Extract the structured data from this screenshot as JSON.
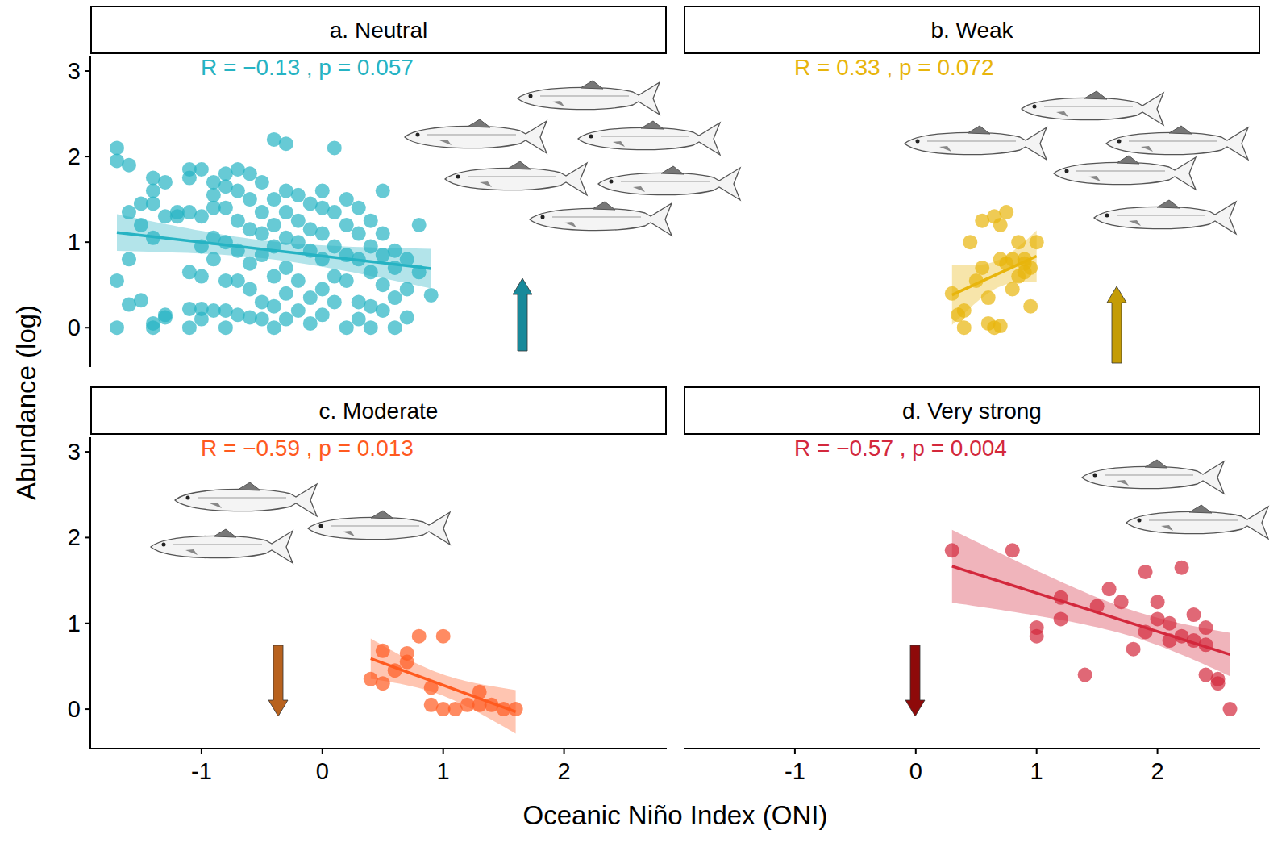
{
  "chart_data": [
    {
      "type": "scatter",
      "title": "a. Neutral",
      "annotation": "R = −0.13 , p = 0.057",
      "ylabel": "Abundance (log)",
      "xlabel": "Oceanic Niño Index (ONI)",
      "color": "#26b3c3",
      "tick_labels": "y",
      "xlim": [
        -1.92,
        2.85
      ],
      "ylim": [
        -0.46,
        3.17
      ],
      "xticks": [
        -1,
        0,
        1,
        2
      ],
      "yticks": [
        0,
        1,
        2,
        3
      ],
      "x": [
        -1.7,
        -1.7,
        -1.7,
        -1.7,
        -1.6,
        -1.6,
        -1.6,
        -1.6,
        -1.5,
        -1.5,
        -1.5,
        -1.4,
        -1.4,
        -1.4,
        -1.4,
        -1.4,
        -1.4,
        -1.3,
        -1.3,
        -1.3,
        -1.3,
        -1.2,
        -1.2,
        -1.1,
        -1.1,
        -1.1,
        -1.1,
        -1.1,
        -1.1,
        -1.0,
        -1.0,
        -1.0,
        -1.0,
        -1.0,
        -1.0,
        -0.9,
        -0.9,
        -0.9,
        -0.9,
        -0.9,
        -0.9,
        -0.8,
        -0.8,
        -0.8,
        -0.8,
        -0.8,
        -0.8,
        -0.8,
        -0.7,
        -0.7,
        -0.7,
        -0.7,
        -0.7,
        -0.7,
        -0.6,
        -0.6,
        -0.6,
        -0.6,
        -0.6,
        -0.6,
        -0.5,
        -0.5,
        -0.5,
        -0.5,
        -0.5,
        -0.5,
        -0.4,
        -0.4,
        -0.4,
        -0.4,
        -0.4,
        -0.4,
        -0.4,
        -0.3,
        -0.3,
        -0.3,
        -0.3,
        -0.3,
        -0.3,
        -0.3,
        -0.2,
        -0.2,
        -0.2,
        -0.2,
        -0.2,
        -0.1,
        -0.1,
        -0.1,
        -0.1,
        -0.1,
        0.0,
        0.0,
        0.0,
        0.0,
        0.0,
        0.0,
        0.1,
        0.1,
        0.1,
        0.1,
        0.1,
        0.2,
        0.2,
        0.2,
        0.2,
        0.2,
        0.3,
        0.3,
        0.3,
        0.3,
        0.3,
        0.4,
        0.4,
        0.4,
        0.4,
        0.4,
        0.5,
        0.5,
        0.5,
        0.5,
        0.5,
        0.6,
        0.6,
        0.6,
        0.6,
        0.7,
        0.7,
        0.7,
        0.8,
        0.8,
        0.9
      ],
      "values": [
        2.1,
        1.95,
        0.55,
        0.0,
        1.9,
        1.35,
        0.8,
        0.27,
        1.45,
        1.2,
        0.32,
        1.75,
        1.6,
        1.45,
        1.05,
        0.05,
        0.0,
        1.7,
        1.3,
        0.15,
        0.12,
        1.35,
        1.3,
        1.85,
        1.75,
        1.35,
        0.65,
        0.22,
        0.0,
        1.85,
        1.3,
        0.95,
        0.6,
        0.22,
        0.1,
        1.7,
        1.55,
        1.4,
        1.05,
        0.8,
        0.2,
        1.8,
        1.65,
        1.4,
        1.0,
        0.55,
        0.2,
        0.0,
        1.85,
        1.6,
        1.25,
        0.9,
        0.55,
        0.15,
        1.8,
        1.5,
        1.15,
        0.75,
        0.45,
        0.12,
        1.7,
        1.35,
        1.1,
        0.85,
        0.3,
        0.1,
        2.2,
        1.5,
        1.2,
        0.95,
        0.6,
        0.25,
        0.0,
        2.15,
        1.6,
        1.35,
        1.05,
        0.7,
        0.4,
        0.1,
        1.55,
        1.25,
        1.0,
        0.55,
        0.2,
        1.45,
        1.15,
        0.9,
        0.35,
        0.05,
        1.6,
        1.4,
        1.1,
        0.8,
        0.45,
        0.15,
        2.1,
        1.35,
        0.95,
        0.6,
        0.3,
        1.5,
        1.2,
        0.85,
        0.55,
        0.0,
        1.4,
        1.1,
        0.8,
        0.3,
        0.1,
        1.25,
        0.95,
        0.65,
        0.25,
        0.0,
        1.6,
        1.1,
        0.85,
        0.5,
        0.2,
        0.9,
        0.7,
        0.35,
        0.0,
        0.8,
        0.45,
        0.12,
        1.2,
        0.65,
        0.38
      ]
    },
    {
      "type": "scatter",
      "title": "b. Weak",
      "annotation": "R = 0.33 , p = 0.072",
      "color": "#e8b50c",
      "tick_labels": false,
      "xlim": [
        -1.92,
        2.85
      ],
      "ylim": [
        -0.46,
        3.17
      ],
      "xticks": [
        -1,
        0,
        1,
        2
      ],
      "yticks": [
        0,
        1,
        2,
        3
      ],
      "x": [
        0.3,
        0.35,
        0.4,
        0.4,
        0.45,
        0.5,
        0.55,
        0.55,
        0.6,
        0.6,
        0.65,
        0.65,
        0.7,
        0.7,
        0.7,
        0.75,
        0.75,
        0.8,
        0.8,
        0.85,
        0.85,
        0.9,
        0.9,
        0.95,
        0.95,
        1.0,
        0.9
      ],
      "values": [
        0.4,
        0.15,
        0.0,
        0.2,
        1.0,
        0.55,
        0.7,
        1.25,
        0.05,
        0.35,
        1.3,
        0.0,
        0.8,
        1.2,
        0.02,
        1.35,
        0.75,
        0.8,
        0.45,
        0.6,
        1.0,
        0.8,
        0.65,
        0.25,
        0.7,
        1.0,
        0.75
      ]
    },
    {
      "type": "scatter",
      "title": "c. Moderate",
      "annotation": "R = −0.59 , p = 0.013",
      "color": "#ff5a1f",
      "xlim": [
        -1.92,
        2.85
      ],
      "ylim": [
        -0.46,
        3.17
      ],
      "xticks": [
        -1,
        0,
        1,
        2
      ],
      "yticks": [
        0,
        1,
        2,
        3
      ],
      "x": [
        0.4,
        0.5,
        0.5,
        0.6,
        0.7,
        0.7,
        0.8,
        0.9,
        0.9,
        1.0,
        1.0,
        1.1,
        1.2,
        1.3,
        1.3,
        1.4,
        1.5,
        1.6
      ],
      "values": [
        0.35,
        0.3,
        0.68,
        0.45,
        0.65,
        0.55,
        0.85,
        0.05,
        0.25,
        0.85,
        0.0,
        0.0,
        0.05,
        0.2,
        0.05,
        0.05,
        0.0,
        0.0
      ]
    },
    {
      "type": "scatter",
      "title": "d. Very strong",
      "annotation": "R = −0.57 , p = 0.004",
      "color": "#d3283c",
      "tick_labels": "x",
      "xlim": [
        -1.92,
        2.85
      ],
      "ylim": [
        -0.46,
        3.17
      ],
      "xticks": [
        -1,
        0,
        1,
        2
      ],
      "yticks": [
        0,
        1,
        2,
        3
      ],
      "x": [
        0.3,
        0.8,
        1.0,
        1.0,
        1.2,
        1.2,
        1.4,
        1.5,
        1.6,
        1.7,
        1.8,
        1.9,
        1.9,
        2.0,
        2.0,
        2.1,
        2.2,
        2.2,
        2.3,
        2.4,
        2.4,
        2.4,
        2.5,
        2.5,
        2.6,
        2.1,
        2.3
      ],
      "values": [
        1.85,
        1.85,
        0.95,
        0.85,
        1.05,
        1.3,
        0.4,
        1.2,
        1.4,
        1.25,
        0.7,
        1.6,
        0.9,
        1.25,
        1.05,
        0.8,
        1.65,
        0.85,
        1.1,
        0.95,
        0.75,
        0.4,
        0.35,
        0.3,
        0.0,
        1.0,
        0.8
      ]
    }
  ]
}
